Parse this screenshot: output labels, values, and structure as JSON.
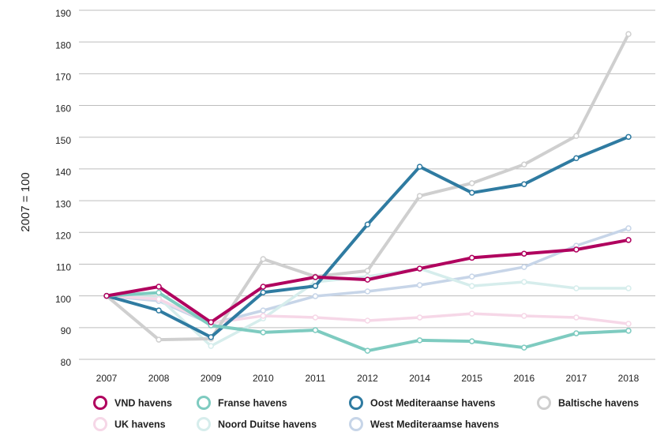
{
  "chart_data": {
    "type": "line",
    "y_label": "2007 = 100",
    "categories": [
      "2007",
      "2008",
      "2009",
      "2010",
      "2011",
      "2012",
      "2014",
      "2015",
      "2016",
      "2017",
      "2018"
    ],
    "ylim": [
      80,
      190
    ],
    "yticks": [
      80,
      90,
      100,
      110,
      120,
      130,
      140,
      150,
      160,
      170,
      180,
      190
    ],
    "grid": true,
    "legend": "bottom",
    "series": [
      {
        "name": "VND havens",
        "color": "#b0005e",
        "values": [
          100,
          102.9,
          91.7,
          102.9,
          105.9,
          105.1,
          108.6,
          112,
          113.3,
          114.6,
          117.6
        ]
      },
      {
        "name": "Franse havens",
        "color": "#7ecbc0",
        "values": [
          100,
          101,
          90.7,
          88.5,
          89.2,
          82.7,
          86,
          85.7,
          83.7,
          88.2,
          89
        ]
      },
      {
        "name": "Oost Mediteraanse havens",
        "color": "#2f7ba1",
        "values": [
          100,
          95.4,
          87,
          101.1,
          103.1,
          122.5,
          140.7,
          132.5,
          135.2,
          143.4,
          150.1
        ]
      },
      {
        "name": "Baltische havens",
        "color": "#cfcfcf",
        "values": [
          100,
          86.2,
          86.5,
          111.6,
          106.1,
          107.9,
          131.5,
          135.5,
          141.4,
          150.4,
          182.5
        ]
      },
      {
        "name": "UK havens",
        "color": "#f6d7e7",
        "values": [
          100,
          99,
          91.4,
          93.7,
          93.2,
          92.2,
          93.2,
          94.4,
          93.7,
          93.2,
          91.2
        ]
      },
      {
        "name": "Noord Duitse havens",
        "color": "#d6edec",
        "values": [
          100,
          99.4,
          84.2,
          92.9,
          104.4,
          106.1,
          108.6,
          103.1,
          104.4,
          102.4,
          102.4
        ]
      },
      {
        "name": "West Mediteraamse havens",
        "color": "#c7d5e8",
        "values": [
          100,
          98.4,
          91.2,
          95.4,
          99.9,
          101.4,
          103.4,
          106.1,
          109.1,
          115.8,
          121.3
        ]
      }
    ]
  }
}
